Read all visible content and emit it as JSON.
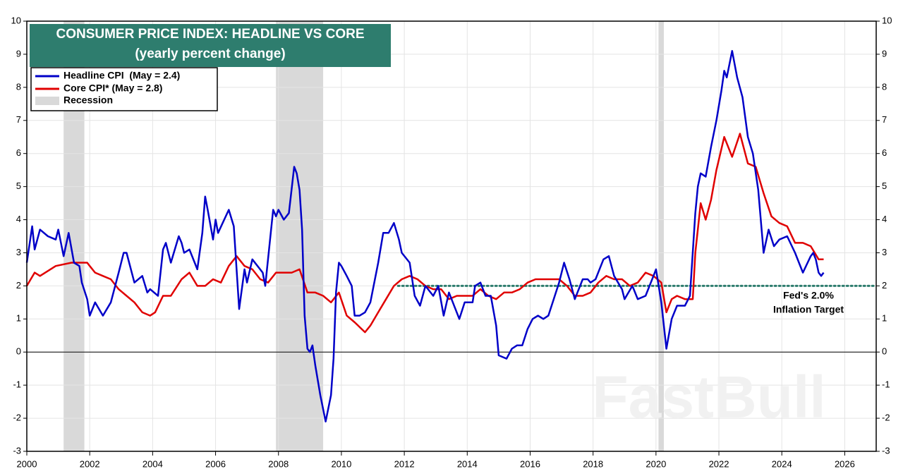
{
  "chart_data": {
    "type": "line",
    "title": "CONSUMER PRICE INDEX: HEADLINE VS CORE",
    "subtitle": "(yearly percent change)",
    "xlim": [
      2000,
      2027
    ],
    "xticks": [
      2000,
      2002,
      2004,
      2006,
      2008,
      2010,
      2012,
      2014,
      2016,
      2018,
      2020,
      2022,
      2024,
      2026
    ],
    "ylim": [
      -3,
      10
    ],
    "yticks": [
      -3,
      -2,
      -1,
      0,
      1,
      2,
      3,
      4,
      5,
      6,
      7,
      8,
      9,
      10
    ],
    "grid": true,
    "legend": "upper left",
    "series": [
      {
        "name": "Headline CPI  (May = 2.4)",
        "color": "#0000c8",
        "x": [
          2000.0,
          2000.17,
          2000.25,
          2000.42,
          2000.67,
          2000.92,
          2001.0,
          2001.17,
          2001.33,
          2001.5,
          2001.67,
          2001.75,
          2001.92,
          2002.0,
          2002.17,
          2002.42,
          2002.67,
          2002.92,
          2003.08,
          2003.17,
          2003.42,
          2003.67,
          2003.83,
          2003.92,
          2004.17,
          2004.33,
          2004.42,
          2004.58,
          2004.83,
          2004.92,
          2005.0,
          2005.17,
          2005.42,
          2005.58,
          2005.67,
          2005.75,
          2005.92,
          2006.0,
          2006.08,
          2006.42,
          2006.58,
          2006.75,
          2006.92,
          2007.0,
          2007.17,
          2007.5,
          2007.58,
          2007.83,
          2007.92,
          2008.0,
          2008.17,
          2008.33,
          2008.5,
          2008.58,
          2008.67,
          2008.75,
          2008.83,
          2008.92,
          2009.0,
          2009.08,
          2009.17,
          2009.33,
          2009.5,
          2009.67,
          2009.75,
          2009.83,
          2009.92,
          2010.0,
          2010.17,
          2010.33,
          2010.42,
          2010.58,
          2010.75,
          2010.92,
          2011.17,
          2011.33,
          2011.5,
          2011.67,
          2011.83,
          2011.92,
          2012.17,
          2012.33,
          2012.5,
          2012.67,
          2012.92,
          2013.08,
          2013.25,
          2013.42,
          2013.75,
          2013.92,
          2014.17,
          2014.25,
          2014.42,
          2014.58,
          2014.75,
          2014.92,
          2015.0,
          2015.25,
          2015.42,
          2015.58,
          2015.75,
          2015.92,
          2016.08,
          2016.25,
          2016.42,
          2016.58,
          2016.75,
          2016.92,
          2017.08,
          2017.25,
          2017.42,
          2017.67,
          2017.83,
          2017.92,
          2018.08,
          2018.33,
          2018.5,
          2018.67,
          2018.92,
          2019.0,
          2019.25,
          2019.42,
          2019.67,
          2019.92,
          2020.0,
          2020.17,
          2020.33,
          2020.5,
          2020.67,
          2020.92,
          2021.08,
          2021.25,
          2021.33,
          2021.42,
          2021.58,
          2021.75,
          2021.92,
          2022.08,
          2022.17,
          2022.25,
          2022.42,
          2022.58,
          2022.75,
          2022.92,
          2023.08,
          2023.25,
          2023.42,
          2023.58,
          2023.75,
          2023.92,
          2024.17,
          2024.42,
          2024.67,
          2024.92,
          2025.0,
          2025.08,
          2025.17,
          2025.25,
          2025.33
        ],
        "values": [
          2.7,
          3.8,
          3.1,
          3.7,
          3.5,
          3.4,
          3.7,
          2.9,
          3.6,
          2.7,
          2.6,
          2.1,
          1.6,
          1.1,
          1.5,
          1.1,
          1.5,
          2.4,
          3.0,
          3.0,
          2.1,
          2.3,
          1.8,
          1.9,
          1.7,
          3.1,
          3.3,
          2.7,
          3.5,
          3.3,
          3.0,
          3.1,
          2.5,
          3.6,
          4.7,
          4.3,
          3.4,
          4.0,
          3.6,
          4.3,
          3.8,
          1.3,
          2.5,
          2.1,
          2.8,
          2.4,
          2.0,
          4.3,
          4.1,
          4.3,
          4.0,
          4.2,
          5.6,
          5.4,
          4.9,
          3.7,
          1.1,
          0.1,
          0.0,
          0.2,
          -0.4,
          -1.3,
          -2.1,
          -1.3,
          -0.2,
          1.8,
          2.7,
          2.6,
          2.3,
          2.0,
          1.1,
          1.1,
          1.2,
          1.5,
          2.7,
          3.6,
          3.6,
          3.9,
          3.4,
          3.0,
          2.7,
          1.7,
          1.4,
          2.0,
          1.7,
          2.0,
          1.1,
          1.8,
          1.0,
          1.5,
          1.5,
          2.0,
          2.1,
          1.7,
          1.7,
          0.8,
          -0.1,
          -0.2,
          0.1,
          0.2,
          0.2,
          0.7,
          1.0,
          1.1,
          1.0,
          1.1,
          1.6,
          2.1,
          2.7,
          2.2,
          1.6,
          2.2,
          2.2,
          2.1,
          2.2,
          2.8,
          2.9,
          2.3,
          1.9,
          1.6,
          2.0,
          1.6,
          1.7,
          2.3,
          2.5,
          1.5,
          0.1,
          1.0,
          1.4,
          1.4,
          1.7,
          4.2,
          5.0,
          5.4,
          5.3,
          6.2,
          7.0,
          7.9,
          8.5,
          8.3,
          9.1,
          8.3,
          7.7,
          6.5,
          6.0,
          4.9,
          3.0,
          3.7,
          3.2,
          3.4,
          3.5,
          3.0,
          2.4,
          2.9,
          3.0,
          2.8,
          2.4,
          2.3,
          2.4
        ]
      },
      {
        "name": "Core CPI* (May = 2.8)",
        "color": "#e00000",
        "x": [
          2000.0,
          2000.25,
          2000.42,
          2000.92,
          2001.42,
          2001.92,
          2002.0,
          2002.17,
          2002.42,
          2002.67,
          2002.92,
          2003.17,
          2003.42,
          2003.67,
          2003.92,
          2004.08,
          2004.33,
          2004.58,
          2004.92,
          2005.17,
          2005.42,
          2005.67,
          2005.92,
          2006.17,
          2006.42,
          2006.67,
          2006.92,
          2007.17,
          2007.42,
          2007.67,
          2007.92,
          2008.17,
          2008.42,
          2008.67,
          2008.92,
          2009.17,
          2009.42,
          2009.67,
          2009.92,
          2010.17,
          2010.42,
          2010.75,
          2010.92,
          2011.17,
          2011.42,
          2011.67,
          2011.92,
          2012.17,
          2012.42,
          2012.67,
          2012.92,
          2013.17,
          2013.42,
          2013.67,
          2013.92,
          2014.17,
          2014.42,
          2014.67,
          2014.92,
          2015.17,
          2015.42,
          2015.67,
          2015.92,
          2016.17,
          2016.42,
          2016.67,
          2016.92,
          2017.17,
          2017.42,
          2017.67,
          2017.92,
          2018.17,
          2018.42,
          2018.67,
          2018.92,
          2019.17,
          2019.42,
          2019.67,
          2019.92,
          2020.17,
          2020.33,
          2020.5,
          2020.67,
          2020.92,
          2021.17,
          2021.25,
          2021.42,
          2021.58,
          2021.75,
          2021.92,
          2022.17,
          2022.42,
          2022.67,
          2022.92,
          2023.17,
          2023.42,
          2023.67,
          2023.92,
          2024.17,
          2024.42,
          2024.67,
          2024.92,
          2025.17,
          2025.33
        ],
        "values": [
          2.0,
          2.4,
          2.3,
          2.6,
          2.7,
          2.7,
          2.6,
          2.4,
          2.3,
          2.2,
          1.9,
          1.7,
          1.5,
          1.2,
          1.1,
          1.2,
          1.7,
          1.7,
          2.2,
          2.4,
          2.0,
          2.0,
          2.2,
          2.1,
          2.6,
          2.9,
          2.6,
          2.5,
          2.2,
          2.1,
          2.4,
          2.4,
          2.4,
          2.5,
          1.8,
          1.8,
          1.7,
          1.5,
          1.8,
          1.1,
          0.9,
          0.6,
          0.8,
          1.2,
          1.6,
          2.0,
          2.2,
          2.3,
          2.2,
          2.0,
          1.9,
          1.9,
          1.6,
          1.7,
          1.7,
          1.7,
          1.9,
          1.7,
          1.6,
          1.8,
          1.8,
          1.9,
          2.1,
          2.2,
          2.2,
          2.2,
          2.2,
          2.0,
          1.7,
          1.7,
          1.8,
          2.1,
          2.3,
          2.2,
          2.2,
          2.0,
          2.1,
          2.4,
          2.3,
          2.1,
          1.2,
          1.6,
          1.7,
          1.6,
          1.6,
          3.0,
          4.5,
          4.0,
          4.6,
          5.5,
          6.5,
          5.9,
          6.6,
          5.7,
          5.6,
          4.8,
          4.1,
          3.9,
          3.8,
          3.3,
          3.3,
          3.2,
          2.8,
          2.8
        ]
      }
    ],
    "recession": {
      "name": "Recession",
      "color": "#d9d9d9",
      "spans": [
        [
          2001.17,
          2001.83
        ],
        [
          2007.92,
          2009.42
        ],
        [
          2020.08,
          2020.25
        ]
      ]
    },
    "target": {
      "value": 2,
      "start": 2011.8,
      "color": "#2e7d6e",
      "labels": [
        "Fed's 2.0%",
        "Inflation Target"
      ]
    },
    "watermark": "FastBull"
  }
}
